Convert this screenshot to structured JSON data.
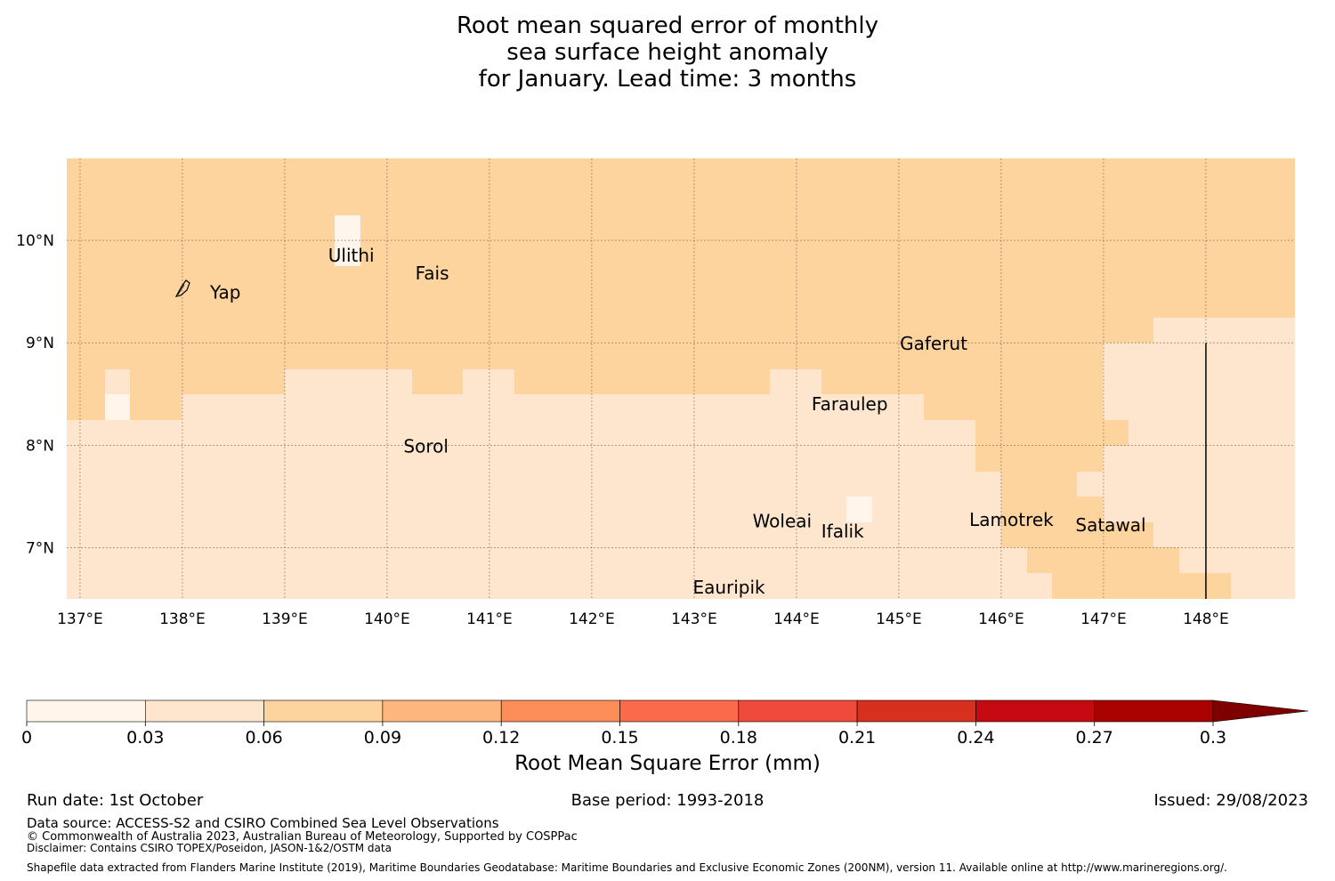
{
  "title": {
    "line1": "Root mean squared error of monthly",
    "line2": "sea surface height anomaly",
    "line3": "for January. Lead time: 3 months"
  },
  "map": {
    "lon_ticks": [
      "137°E",
      "138°E",
      "139°E",
      "140°E",
      "141°E",
      "142°E",
      "143°E",
      "144°E",
      "145°E",
      "146°E",
      "147°E",
      "148°E"
    ],
    "lat_ticks": [
      "10°N",
      "9°N",
      "8°N",
      "7°N"
    ],
    "extent": {
      "lon": [
        136.87,
        148.87
      ],
      "lat": [
        6.5,
        10.8
      ]
    },
    "places": [
      {
        "name": "Yap",
        "lon": 138.42,
        "lat": 9.5
      },
      {
        "name": "Ulithi",
        "lon": 139.65,
        "lat": 9.86
      },
      {
        "name": "Fais",
        "lon": 140.44,
        "lat": 9.69
      },
      {
        "name": "Gaferut",
        "lon": 145.34,
        "lat": 9.0
      },
      {
        "name": "Faraulep",
        "lon": 144.52,
        "lat": 8.41
      },
      {
        "name": "Sorol",
        "lon": 140.38,
        "lat": 8.0
      },
      {
        "name": "Woleai",
        "lon": 143.86,
        "lat": 7.27
      },
      {
        "name": "Ifalik",
        "lon": 144.45,
        "lat": 7.17
      },
      {
        "name": "Lamotrek",
        "lon": 146.1,
        "lat": 7.28
      },
      {
        "name": "Satawal",
        "lon": 147.07,
        "lat": 7.23
      },
      {
        "name": "Eauripik",
        "lon": 143.34,
        "lat": 6.62
      }
    ],
    "boundary_lon": 148.0,
    "colors": {
      "bin1": "#fff5eb",
      "bin2": "#fee6ce",
      "bin3": "#fdd49e"
    }
  },
  "colorbar": {
    "label": "Root Mean Square Error (mm)",
    "ticks": [
      "0",
      "0.03",
      "0.06",
      "0.09",
      "0.12",
      "0.15",
      "0.18",
      "0.21",
      "0.24",
      "0.27",
      "0.3"
    ],
    "colors": [
      "#fff5eb",
      "#fee6ce",
      "#fdd49e",
      "#fdb67d",
      "#fc8d59",
      "#fb6a4a",
      "#ef4a3c",
      "#d7301f",
      "#c50b11",
      "#a90000",
      "#7f0000"
    ]
  },
  "footer": {
    "run_date": "Run date: 1st October",
    "base_period": "Base period: 1993-2018",
    "issued": "Issued: 29/08/2023",
    "data_source": "Data source: ACCESS-S2 and CSIRO Combined Sea Level Observations",
    "copyright": "© Commonwealth of Australia 2023, Australian Bureau of Meteorology, Supported by COSPPac",
    "disclaimer": "Disclaimer: Contains CSIRO TOPEX/Poseidon, JASON-1&2/OSTM data",
    "shapefile": "Shapefile data extracted from Flanders Marine Institute (2019), Maritime Boundaries Geodatabase: Maritime Boundaries and Exclusive Economic Zones (200NM), version 11. Available online at http://www.marineregions.org/."
  }
}
